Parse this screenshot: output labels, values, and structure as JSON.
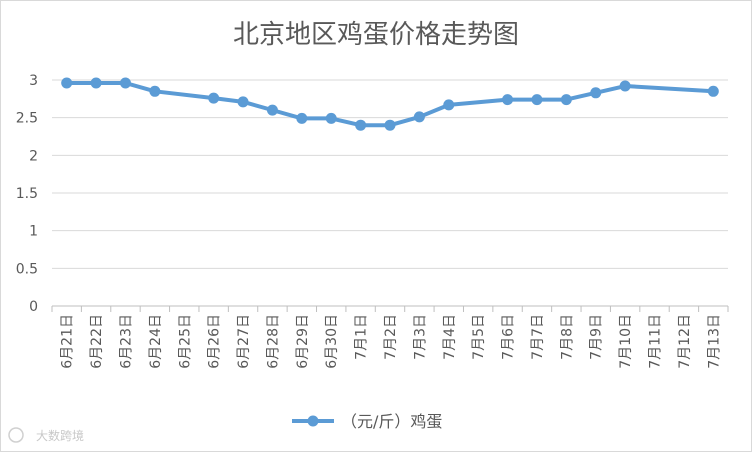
{
  "chart_data": {
    "type": "line",
    "title": "北京地区鸡蛋价格走势图",
    "categories": [
      "6月21日",
      "6月22日",
      "6月23日",
      "6月24日",
      "6月25日",
      "6月26日",
      "6月27日",
      "6月28日",
      "6月29日",
      "6月30日",
      "7月1日",
      "7月2日",
      "7月3日",
      "7月4日",
      "7月5日",
      "7月6日",
      "7月7日",
      "7月8日",
      "7月9日",
      "7月10日",
      "7月11日",
      "7月12日",
      "7月13日"
    ],
    "series": [
      {
        "name": "（元/斤）鸡蛋",
        "color": "#5b9bd5",
        "values": [
          2.96,
          2.96,
          2.96,
          2.85,
          null,
          2.76,
          2.71,
          2.6,
          2.49,
          2.49,
          2.4,
          2.4,
          2.51,
          2.67,
          null,
          2.74,
          2.74,
          2.74,
          2.83,
          2.92,
          null,
          null,
          2.85
        ]
      }
    ],
    "yticks": [
      "0",
      "0.5",
      "1",
      "1.5",
      "2",
      "2.5",
      "3"
    ],
    "ylim": [
      0,
      3
    ],
    "xlabel": "",
    "ylabel": "",
    "grid": true,
    "legend": "bottom"
  },
  "watermark": "大数跨境"
}
